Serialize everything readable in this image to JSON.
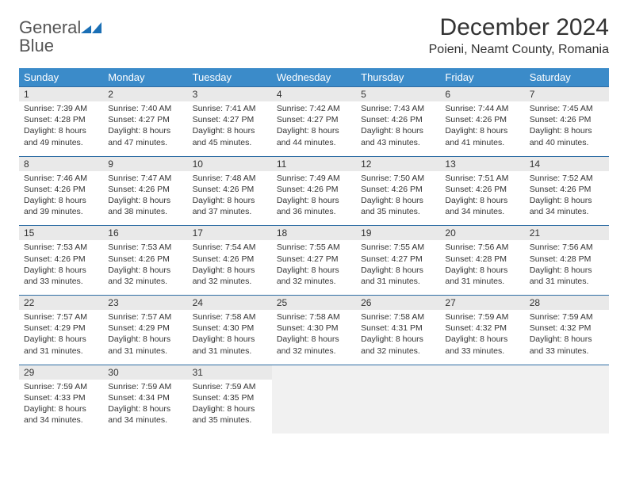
{
  "logo": {
    "word1": "General",
    "word2": "Blue"
  },
  "title": "December 2024",
  "location": "Poieni, Neamt County, Romania",
  "colors": {
    "header_bg": "#3b8bc9",
    "header_text": "#ffffff",
    "daynum_bg": "#e9e9e9",
    "row_border": "#2e6da4",
    "logo_grey": "#555555",
    "logo_blue": "#1a6fb5",
    "empty_bg": "#f1f1f1"
  },
  "weekdays": [
    "Sunday",
    "Monday",
    "Tuesday",
    "Wednesday",
    "Thursday",
    "Friday",
    "Saturday"
  ],
  "weeks": [
    [
      {
        "n": "1",
        "sr": "7:39 AM",
        "ss": "4:28 PM",
        "dl": "8 hours and 49 minutes."
      },
      {
        "n": "2",
        "sr": "7:40 AM",
        "ss": "4:27 PM",
        "dl": "8 hours and 47 minutes."
      },
      {
        "n": "3",
        "sr": "7:41 AM",
        "ss": "4:27 PM",
        "dl": "8 hours and 45 minutes."
      },
      {
        "n": "4",
        "sr": "7:42 AM",
        "ss": "4:27 PM",
        "dl": "8 hours and 44 minutes."
      },
      {
        "n": "5",
        "sr": "7:43 AM",
        "ss": "4:26 PM",
        "dl": "8 hours and 43 minutes."
      },
      {
        "n": "6",
        "sr": "7:44 AM",
        "ss": "4:26 PM",
        "dl": "8 hours and 41 minutes."
      },
      {
        "n": "7",
        "sr": "7:45 AM",
        "ss": "4:26 PM",
        "dl": "8 hours and 40 minutes."
      }
    ],
    [
      {
        "n": "8",
        "sr": "7:46 AM",
        "ss": "4:26 PM",
        "dl": "8 hours and 39 minutes."
      },
      {
        "n": "9",
        "sr": "7:47 AM",
        "ss": "4:26 PM",
        "dl": "8 hours and 38 minutes."
      },
      {
        "n": "10",
        "sr": "7:48 AM",
        "ss": "4:26 PM",
        "dl": "8 hours and 37 minutes."
      },
      {
        "n": "11",
        "sr": "7:49 AM",
        "ss": "4:26 PM",
        "dl": "8 hours and 36 minutes."
      },
      {
        "n": "12",
        "sr": "7:50 AM",
        "ss": "4:26 PM",
        "dl": "8 hours and 35 minutes."
      },
      {
        "n": "13",
        "sr": "7:51 AM",
        "ss": "4:26 PM",
        "dl": "8 hours and 34 minutes."
      },
      {
        "n": "14",
        "sr": "7:52 AM",
        "ss": "4:26 PM",
        "dl": "8 hours and 34 minutes."
      }
    ],
    [
      {
        "n": "15",
        "sr": "7:53 AM",
        "ss": "4:26 PM",
        "dl": "8 hours and 33 minutes."
      },
      {
        "n": "16",
        "sr": "7:53 AM",
        "ss": "4:26 PM",
        "dl": "8 hours and 32 minutes."
      },
      {
        "n": "17",
        "sr": "7:54 AM",
        "ss": "4:26 PM",
        "dl": "8 hours and 32 minutes."
      },
      {
        "n": "18",
        "sr": "7:55 AM",
        "ss": "4:27 PM",
        "dl": "8 hours and 32 minutes."
      },
      {
        "n": "19",
        "sr": "7:55 AM",
        "ss": "4:27 PM",
        "dl": "8 hours and 31 minutes."
      },
      {
        "n": "20",
        "sr": "7:56 AM",
        "ss": "4:28 PM",
        "dl": "8 hours and 31 minutes."
      },
      {
        "n": "21",
        "sr": "7:56 AM",
        "ss": "4:28 PM",
        "dl": "8 hours and 31 minutes."
      }
    ],
    [
      {
        "n": "22",
        "sr": "7:57 AM",
        "ss": "4:29 PM",
        "dl": "8 hours and 31 minutes."
      },
      {
        "n": "23",
        "sr": "7:57 AM",
        "ss": "4:29 PM",
        "dl": "8 hours and 31 minutes."
      },
      {
        "n": "24",
        "sr": "7:58 AM",
        "ss": "4:30 PM",
        "dl": "8 hours and 31 minutes."
      },
      {
        "n": "25",
        "sr": "7:58 AM",
        "ss": "4:30 PM",
        "dl": "8 hours and 32 minutes."
      },
      {
        "n": "26",
        "sr": "7:58 AM",
        "ss": "4:31 PM",
        "dl": "8 hours and 32 minutes."
      },
      {
        "n": "27",
        "sr": "7:59 AM",
        "ss": "4:32 PM",
        "dl": "8 hours and 33 minutes."
      },
      {
        "n": "28",
        "sr": "7:59 AM",
        "ss": "4:32 PM",
        "dl": "8 hours and 33 minutes."
      }
    ],
    [
      {
        "n": "29",
        "sr": "7:59 AM",
        "ss": "4:33 PM",
        "dl": "8 hours and 34 minutes."
      },
      {
        "n": "30",
        "sr": "7:59 AM",
        "ss": "4:34 PM",
        "dl": "8 hours and 34 minutes."
      },
      {
        "n": "31",
        "sr": "7:59 AM",
        "ss": "4:35 PM",
        "dl": "8 hours and 35 minutes."
      },
      null,
      null,
      null,
      null
    ]
  ],
  "labels": {
    "sunrise": "Sunrise: ",
    "sunset": "Sunset: ",
    "daylight": "Daylight: "
  }
}
